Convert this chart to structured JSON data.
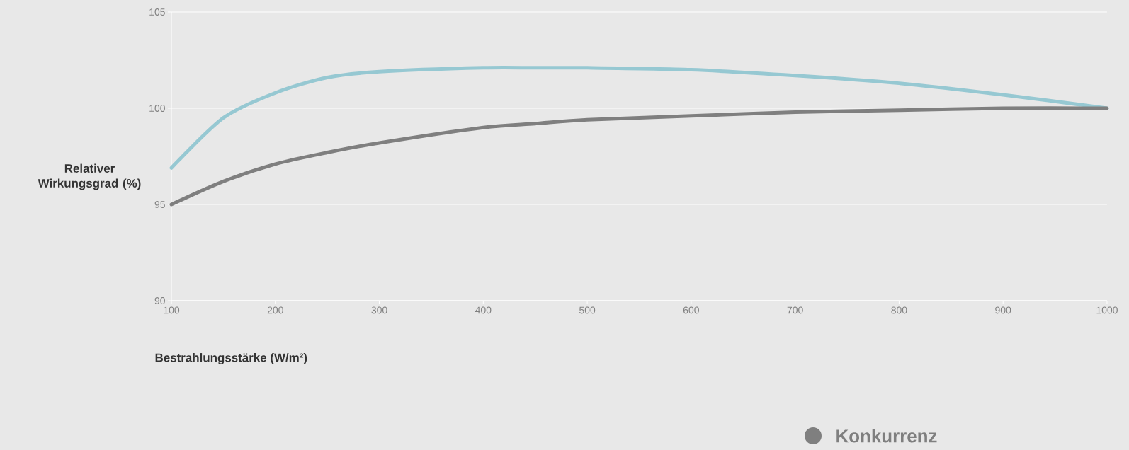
{
  "chart_data": {
    "type": "line",
    "xlabel": "Bestrahlungsstärke (W/m²)",
    "ylabel": "Relativer Wirkungsgrad (%)",
    "x": [
      100,
      150,
      200,
      250,
      300,
      400,
      450,
      500,
      600,
      700,
      800,
      900,
      1000
    ],
    "series": [
      {
        "color": "#96c8d2",
        "values": [
          96.9,
          99.5,
          100.8,
          101.6,
          101.9,
          102.1,
          102.1,
          102.1,
          102.0,
          101.7,
          101.3,
          100.7,
          100.0
        ]
      },
      {
        "name": "Konkurrenz",
        "color": "#7f7f7f",
        "values": [
          95.0,
          96.2,
          97.1,
          97.7,
          98.2,
          99.0,
          99.2,
          99.4,
          99.6,
          99.8,
          99.9,
          100.0,
          100.0
        ]
      }
    ],
    "xlim": [
      100,
      1000
    ],
    "xticks": [
      100,
      200,
      300,
      400,
      500,
      600,
      700,
      800,
      900,
      1000
    ],
    "ylim": [
      90,
      105
    ],
    "yticks": [
      90,
      95,
      100,
      105
    ],
    "grid": "y",
    "legend": "bottom right",
    "marker": "none",
    "line_style": "solid"
  }
}
